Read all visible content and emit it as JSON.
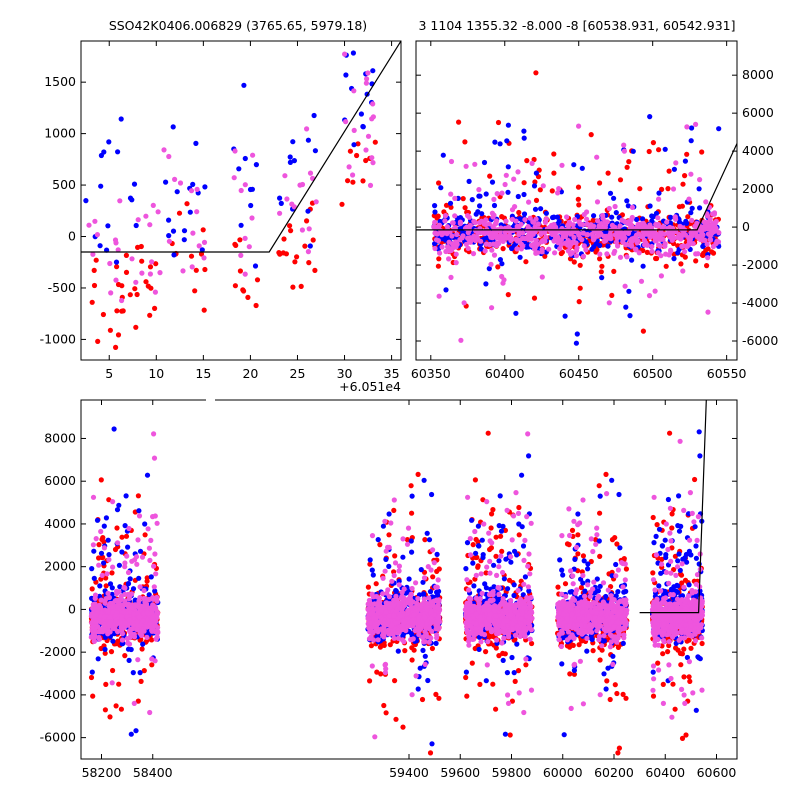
{
  "titles": {
    "left": "SSO42K0406.006829 (3765.65, 5979.18)",
    "right": "3 1104 1355.32 -8.000 -8 [60538.931, 60542.931]"
  },
  "colors": {
    "band_r": "#ff0000",
    "band_b": "#0000ff",
    "band_g": "#ee55dd",
    "model": "#000000"
  },
  "chart_data": [
    {
      "id": "zoom-left",
      "type": "scatter",
      "title": "SSO42K0406.006829 (3765.65, 5979.18)",
      "x_offset_label": "+6.051e4",
      "xlim": [
        2,
        36
      ],
      "ylim": [
        -1200,
        1900
      ],
      "xticks": [
        5,
        10,
        15,
        20,
        25,
        30,
        35
      ],
      "yticks": [
        -1000,
        -500,
        0,
        500,
        1000,
        1500
      ],
      "model": [
        [
          2,
          -150
        ],
        [
          22,
          -150
        ],
        [
          36,
          1900
        ]
      ],
      "clusters": [
        {
          "x": 4.5,
          "sx": 2.0,
          "r": [
            -600,
            300,
            14
          ],
          "b": [
            500,
            500,
            12
          ],
          "g": [
            0,
            350,
            12
          ]
        },
        {
          "x": 8.5,
          "sx": 2.2,
          "r": [
            -400,
            200,
            18
          ],
          "b": [
            100,
            250,
            4
          ],
          "g": [
            -150,
            250,
            12
          ]
        },
        {
          "x": 13,
          "sx": 2.2,
          "r": [
            -150,
            250,
            12
          ],
          "b": [
            400,
            400,
            16
          ],
          "g": [
            100,
            350,
            14
          ]
        },
        {
          "x": 19.5,
          "sx": 1.3,
          "r": [
            -450,
            250,
            10
          ],
          "b": [
            600,
            400,
            10
          ],
          "g": [
            300,
            350,
            10
          ]
        },
        {
          "x": 25,
          "sx": 2.0,
          "r": [
            -100,
            250,
            18
          ],
          "b": [
            600,
            300,
            12
          ],
          "g": [
            400,
            300,
            14
          ]
        },
        {
          "x": 31.5,
          "sx": 1.8,
          "r": [
            850,
            350,
            10
          ],
          "b": [
            1500,
            350,
            16
          ],
          "g": [
            1100,
            450,
            18
          ]
        }
      ]
    },
    {
      "id": "zoom-right",
      "type": "scatter",
      "title": "3 1104 1355.32 -8.000 -8 [60538.931, 60542.931]",
      "xlim": [
        60340,
        60557
      ],
      "ylim": [
        -7000,
        9800
      ],
      "xticks": [
        60350,
        60400,
        60450,
        60500,
        60550
      ],
      "yticks": [
        -6000,
        -4000,
        -2000,
        0,
        2000,
        4000,
        6000,
        8000
      ],
      "model": [
        [
          60340,
          -150
        ],
        [
          60530,
          -150
        ],
        [
          60557,
          4400
        ]
      ],
      "segments": [
        [
          60352,
          60545
        ]
      ]
    },
    {
      "id": "full-lightcurve",
      "type": "scatter",
      "title": "",
      "xlim": [
        58120,
        60680
      ],
      "ylim": [
        -7000,
        9800
      ],
      "xticks": [
        58200,
        58400,
        59400,
        59600,
        59800,
        60000,
        60200,
        60400,
        60600
      ],
      "yticks": [
        -6000,
        -4000,
        -2000,
        0,
        2000,
        4000,
        6000,
        8000
      ],
      "model": [
        [
          60300,
          -150
        ],
        [
          60530,
          -150
        ],
        [
          60560,
          9800
        ]
      ],
      "segments": [
        [
          58160,
          58420
        ],
        [
          59240,
          59520
        ],
        [
          59620,
          59880
        ],
        [
          59980,
          60250
        ],
        [
          60350,
          60545
        ]
      ]
    }
  ]
}
